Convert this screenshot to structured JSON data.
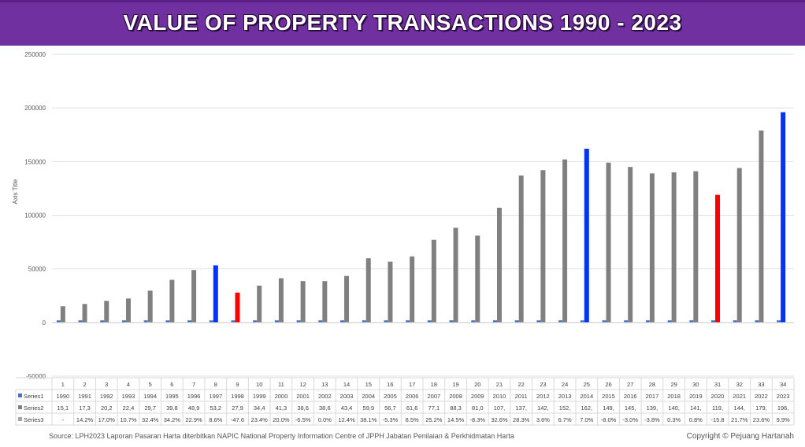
{
  "header": {
    "title": "VALUE OF PROPERTY TRANSACTIONS 1990 - 2023"
  },
  "footer": {
    "source": "Source: LPH2023 Laporan Pasaran Harta diterbitkan NAPIC National Property Information Centre of JPPH Jabatan Penilaian & Perkhidmatan Harta",
    "copyright": "Copyright © Pejuang Hartanah"
  },
  "chart_data": {
    "type": "bar",
    "title": "VALUE OF PROPERTY TRANSACTIONS 1990 - 2023",
    "ylabel": "Axis Title",
    "xlabel": "",
    "ylim": [
      -50000,
      250000
    ],
    "yticks": [
      250000,
      200000,
      150000,
      100000,
      50000,
      0,
      -50000
    ],
    "grid": true,
    "categories": [
      "1",
      "2",
      "3",
      "4",
      "5",
      "6",
      "7",
      "8",
      "9",
      "10",
      "11",
      "12",
      "13",
      "14",
      "15",
      "16",
      "17",
      "18",
      "19",
      "20",
      "21",
      "22",
      "23",
      "24",
      "25",
      "26",
      "27",
      "28",
      "29",
      "30",
      "31",
      "32",
      "33",
      "34"
    ],
    "colors": {
      "series1": "#4472c4",
      "series2": "#808080",
      "series3": "#a5a5a5",
      "highlight_blue": "#0033ff",
      "highlight_red": "#ff0000",
      "header": "#7030a0"
    },
    "highlight_blue": [
      8,
      25,
      34
    ],
    "highlight_red": [
      9,
      31
    ],
    "series": [
      {
        "name": "Series1",
        "values": [
          1990,
          1991,
          1992,
          1993,
          1994,
          1995,
          1996,
          1997,
          1998,
          1999,
          2000,
          2001,
          2002,
          2003,
          2004,
          2005,
          2006,
          2007,
          2008,
          2009,
          2010,
          2011,
          2012,
          2013,
          2014,
          2015,
          2016,
          2017,
          2018,
          2019,
          2020,
          2021,
          2022,
          2023
        ],
        "labels": [
          "1990",
          "1991",
          "1992",
          "1993",
          "1994",
          "1995",
          "1996",
          "1997",
          "1998",
          "1999",
          "2000",
          "2001",
          "2002",
          "2003",
          "2004",
          "2005",
          "2006",
          "2007",
          "2008",
          "2009",
          "2010",
          "2011",
          "2012",
          "2013",
          "2014",
          "2015",
          "2016",
          "2017",
          "2018",
          "2019",
          "2020",
          "2021",
          "2022",
          "2023"
        ]
      },
      {
        "name": "Series2",
        "values": [
          15100,
          17300,
          20200,
          22400,
          29700,
          39800,
          48900,
          53200,
          27900,
          34400,
          41300,
          38600,
          38600,
          43400,
          59900,
          56700,
          61600,
          77100,
          88300,
          81000,
          107000,
          137000,
          142000,
          152000,
          162000,
          149000,
          145000,
          139000,
          140000,
          141000,
          119000,
          144000,
          179000,
          196000
        ],
        "labels": [
          "15,1",
          "17,3",
          "20,2",
          "22,4",
          "29,7",
          "39,8",
          "48,9",
          "53,2",
          "27,9",
          "34,4",
          "41,3",
          "38,6",
          "38,6",
          "43,4",
          "59,9",
          "56,7",
          "61,6",
          "77,1",
          "88,3",
          "81,0",
          "107,",
          "137,",
          "142,",
          "152,",
          "162,",
          "149,",
          "145,",
          "139,",
          "140,",
          "141,",
          "119,",
          "144,",
          "179,",
          "196,"
        ]
      },
      {
        "name": "Series3",
        "values": [
          null,
          0.142,
          0.17,
          0.107,
          0.324,
          0.342,
          0.229,
          0.086,
          -0.476,
          0.234,
          0.2,
          -0.065,
          0,
          0.124,
          0.381,
          -0.053,
          0.085,
          0.252,
          0.145,
          -0.083,
          0.326,
          0.283,
          0.036,
          0.067,
          0.07,
          -0.08,
          -0.03,
          -0.038,
          0.003,
          0.008,
          -0.158,
          0.217,
          0.236,
          0.099
        ],
        "labels": [
          "-",
          "14.2%",
          "17.0%",
          "10.7%",
          "32.4%",
          "34.2%",
          "22.9%",
          "8.6%",
          "-47.6",
          "23.4%",
          "20.0%",
          "-6.5%",
          "0.0%",
          "12.4%",
          "38.1%",
          "-5.3%",
          "8.5%",
          "25.2%",
          "14.5%",
          "-8.3%",
          "32.6%",
          "28.3%",
          "3.6%",
          "6.7%",
          "7.0%",
          "-8.0%",
          "-3.0%",
          "-3.8%",
          "0.3%",
          "0.8%",
          "-15.8",
          "21.7%",
          "23.6%",
          "9.9%"
        ]
      }
    ]
  }
}
